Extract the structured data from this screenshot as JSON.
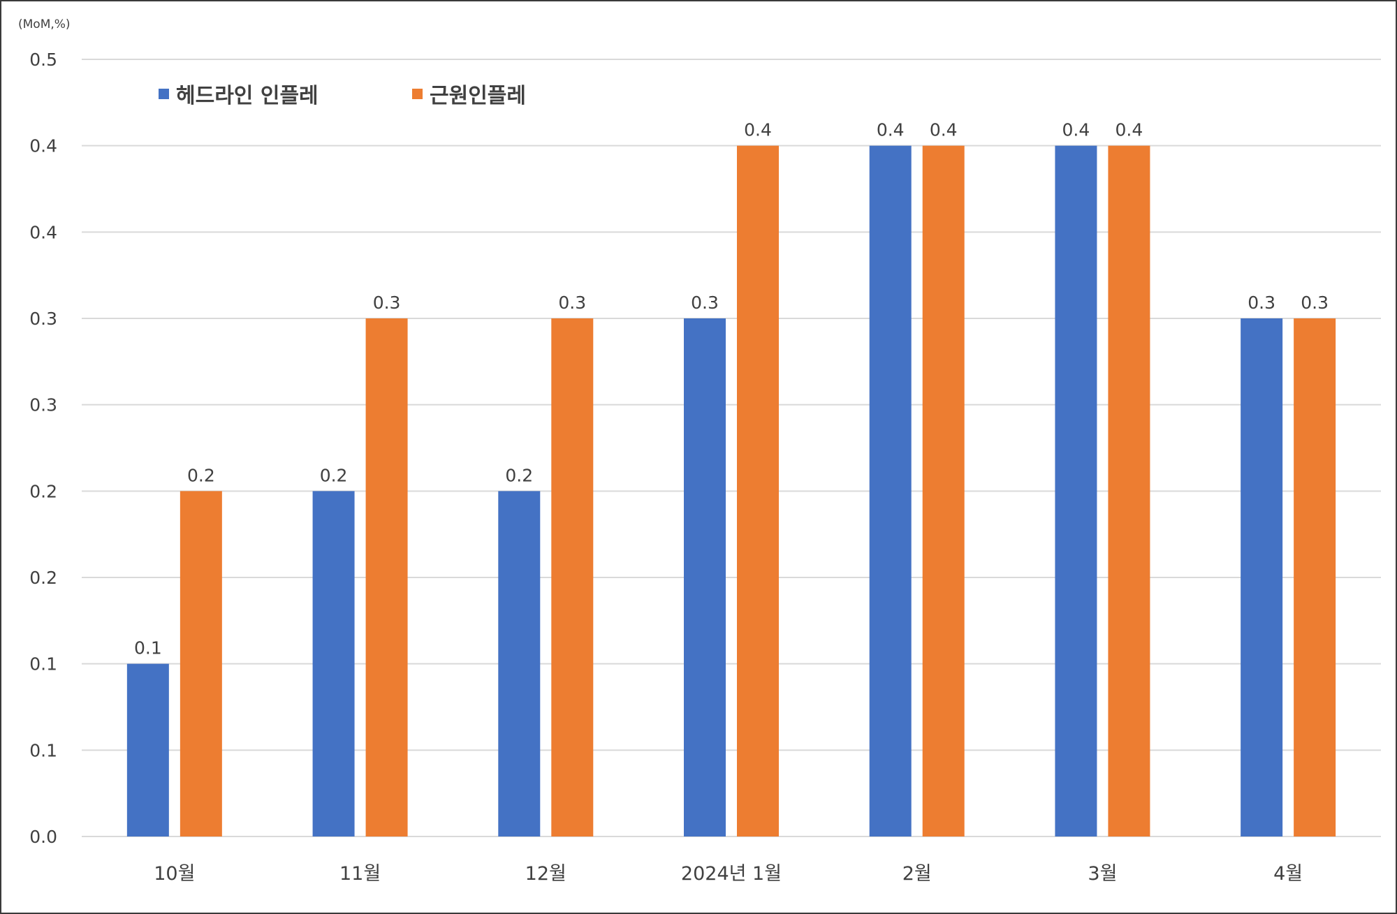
{
  "chart_data": {
    "type": "bar",
    "unit_label": "(MoM,%)",
    "categories": [
      "10월",
      "11월",
      "12월",
      "2024년  1월",
      "2월",
      "3월",
      "4월"
    ],
    "series": [
      {
        "name": "헤드라인 인플레",
        "color": "#4472C4",
        "values": [
          0.1,
          0.2,
          0.2,
          0.3,
          0.4,
          0.4,
          0.3
        ],
        "value_labels": [
          "0.1",
          "0.2",
          "0.2",
          "0.3",
          "0.4",
          "0.4",
          "0.3"
        ]
      },
      {
        "name": "근원인플레",
        "color": "#ED7D31",
        "values": [
          0.2,
          0.3,
          0.3,
          0.4,
          0.4,
          0.4,
          0.3
        ],
        "value_labels": [
          "0.2",
          "0.3",
          "0.3",
          "0.4",
          "0.4",
          "0.4",
          "0.3"
        ]
      }
    ],
    "y_tick_labels": [
      "0.0",
      "0.1",
      "0.1",
      "0.2",
      "0.2",
      "0.3",
      "0.3",
      "0.4",
      "0.4",
      "0.5"
    ],
    "ylim": [
      0,
      0.45
    ],
    "grid": true,
    "legend_position": "top-left",
    "colors": {
      "gridline": "#D9D9D9",
      "text": "#404040"
    }
  }
}
